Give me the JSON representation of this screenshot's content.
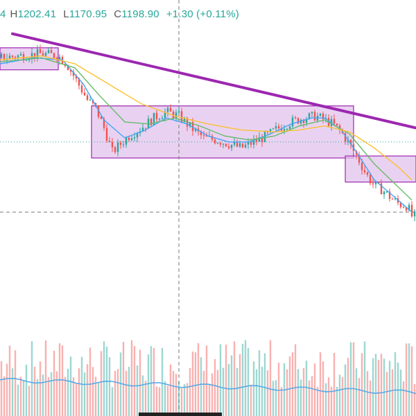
{
  "legend": {
    "open_label": "",
    "open": "4",
    "high_label": "H",
    "high": "1202.41",
    "low_label": "L",
    "low": "1170.95",
    "close_label": "C",
    "close": "1198.90",
    "change": "+1.30 (+0.11%)"
  },
  "colors": {
    "up": "#26a69a",
    "down": "#ef5350",
    "trendline": "#9c27b0",
    "zone_fill": "#e1c3ec",
    "zone_border": "#9c27b0",
    "ma_fast": "#42a5f5",
    "ma_mid": "#66bb6a",
    "ma_slow": "#fbc02d",
    "volume_ma": "#5aa9e6"
  },
  "chart_data": {
    "type": "candlestick",
    "title": "",
    "grid": false,
    "ylim": [
      1080,
      1208
    ],
    "close_points": [
      [
        0,
        1193
      ],
      [
        5,
        1194
      ],
      [
        10,
        1195
      ],
      [
        14,
        1194
      ],
      [
        16,
        1190
      ],
      [
        18,
        1183
      ],
      [
        21,
        1172
      ],
      [
        23,
        1168
      ],
      [
        25,
        1158
      ],
      [
        27,
        1146
      ],
      [
        29,
        1150
      ],
      [
        31,
        1154
      ],
      [
        34,
        1158
      ],
      [
        37,
        1163
      ],
      [
        40,
        1166
      ],
      [
        43,
        1164
      ],
      [
        46,
        1158
      ],
      [
        49,
        1153
      ],
      [
        52,
        1152
      ],
      [
        55,
        1150
      ],
      [
        58,
        1148
      ],
      [
        61,
        1151
      ],
      [
        64,
        1154
      ],
      [
        67,
        1158
      ],
      [
        70,
        1161
      ],
      [
        73,
        1163
      ],
      [
        76,
        1164
      ],
      [
        78,
        1162
      ],
      [
        80,
        1160
      ],
      [
        82,
        1156
      ],
      [
        84,
        1150
      ],
      [
        86,
        1143
      ],
      [
        88,
        1135
      ],
      [
        90,
        1129
      ],
      [
        92,
        1127
      ],
      [
        94,
        1123
      ],
      [
        96,
        1120
      ],
      [
        98,
        1119
      ],
      [
        99,
        1114
      ]
    ],
    "moving_averages": [
      {
        "color": "#42a5f5",
        "values": [
          [
            0,
            1190
          ],
          [
            8,
            1193
          ],
          [
            15,
            1192
          ],
          [
            20,
            1180
          ],
          [
            25,
            1162
          ],
          [
            30,
            1153
          ],
          [
            35,
            1157
          ],
          [
            40,
            1163
          ],
          [
            45,
            1160
          ],
          [
            50,
            1154
          ],
          [
            55,
            1151
          ],
          [
            60,
            1151
          ],
          [
            65,
            1155
          ],
          [
            70,
            1160
          ],
          [
            75,
            1163
          ],
          [
            78,
            1163
          ],
          [
            82,
            1157
          ],
          [
            86,
            1145
          ],
          [
            90,
            1132
          ],
          [
            94,
            1125
          ],
          [
            99,
            1116
          ]
        ]
      },
      {
        "color": "#66bb6a",
        "values": [
          [
            0,
            1191
          ],
          [
            10,
            1193
          ],
          [
            18,
            1188
          ],
          [
            24,
            1174
          ],
          [
            30,
            1161
          ],
          [
            36,
            1160
          ],
          [
            42,
            1163
          ],
          [
            48,
            1159
          ],
          [
            54,
            1154
          ],
          [
            60,
            1152
          ],
          [
            66,
            1154
          ],
          [
            72,
            1159
          ],
          [
            78,
            1162
          ],
          [
            84,
            1155
          ],
          [
            90,
            1140
          ],
          [
            95,
            1130
          ],
          [
            99,
            1122
          ]
        ]
      },
      {
        "color": "#fbc02d",
        "values": [
          [
            0,
            1192
          ],
          [
            10,
            1194
          ],
          [
            18,
            1190
          ],
          [
            26,
            1180
          ],
          [
            34,
            1170
          ],
          [
            42,
            1164
          ],
          [
            50,
            1160
          ],
          [
            58,
            1157
          ],
          [
            66,
            1156
          ],
          [
            72,
            1157
          ],
          [
            78,
            1159
          ],
          [
            84,
            1156
          ],
          [
            90,
            1148
          ],
          [
            96,
            1138
          ],
          [
            99,
            1132
          ]
        ]
      }
    ],
    "trendline": [
      [
        3,
        1205
      ],
      [
        100,
        1158
      ]
    ],
    "zones": [
      {
        "x": [
          0,
          14
        ],
        "y": [
          1187,
          1198
        ]
      },
      {
        "x": [
          22,
          85
        ],
        "y": [
          1143,
          1169
        ]
      },
      {
        "x": [
          83,
          100
        ],
        "y": [
          1131,
          1144
        ]
      }
    ],
    "reference_level": 1151,
    "crosshair": {
      "x": 43,
      "y": 1116
    },
    "volume": {
      "ylim": [
        0,
        100
      ],
      "ma_level": 52,
      "ma_end_level": 34
    }
  }
}
